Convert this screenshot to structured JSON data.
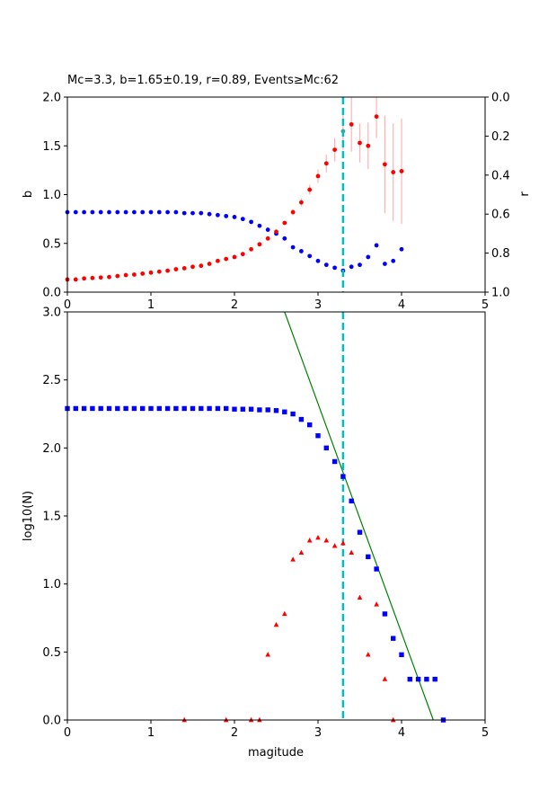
{
  "chart_data": [
    {
      "id": "top",
      "type": "scatter",
      "title": "Mc=3.3, b=1.65±0.19, r=0.89, Events≥Mc:62",
      "xlabel": "",
      "ylabel": "b",
      "ylabel_right": "r",
      "xlim": [
        0,
        5
      ],
      "ylim": [
        0,
        2.0
      ],
      "ylim_right": [
        1.0,
        0.0
      ],
      "xticks": [
        "0",
        "1",
        "2",
        "3",
        "4",
        "5"
      ],
      "yticks": [
        "0.0",
        "0.5",
        "1.0",
        "1.5",
        "2.0"
      ],
      "yticks_right": [
        "0.0",
        "0.2",
        "0.4",
        "0.6",
        "0.8",
        "1.0"
      ],
      "grid": false,
      "mc_line": 3.3,
      "colors": {
        "b": "#ff0000",
        "r": "#0000ff",
        "errorbar": "#ffb3b3",
        "mc": "#00bfbf",
        "highlight": "#808080"
      },
      "series": [
        {
          "axis": "left",
          "x": [
            0.0,
            0.1,
            0.2,
            0.3,
            0.4,
            0.5,
            0.6,
            0.7,
            0.8,
            0.9,
            1.0,
            1.1,
            1.2,
            1.3,
            1.4,
            1.5,
            1.6,
            1.7,
            1.8,
            1.9,
            2.0,
            2.1,
            2.2,
            2.3,
            2.4,
            2.5,
            2.6,
            2.7,
            2.8,
            2.9,
            3.0,
            3.1,
            3.2,
            3.3,
            3.4,
            3.5,
            3.6,
            3.7,
            3.8,
            3.9,
            4.0
          ],
          "values": [
            0.13,
            0.13,
            0.14,
            0.145,
            0.15,
            0.155,
            0.165,
            0.175,
            0.18,
            0.19,
            0.2,
            0.21,
            0.22,
            0.235,
            0.245,
            0.26,
            0.27,
            0.29,
            0.32,
            0.34,
            0.36,
            0.39,
            0.44,
            0.49,
            0.55,
            0.62,
            0.71,
            0.82,
            0.92,
            1.05,
            1.19,
            1.32,
            1.46,
            1.65,
            1.72,
            1.53,
            1.5,
            1.8,
            1.31,
            1.23,
            1.24
          ],
          "error": [
            0,
            0,
            0,
            0,
            0,
            0,
            0,
            0,
            0,
            0,
            0,
            0,
            0,
            0,
            0,
            0,
            0,
            0,
            0,
            0,
            0,
            0,
            0,
            0,
            0,
            0,
            0.02,
            0.03,
            0.04,
            0.05,
            0.07,
            0.09,
            0.12,
            0.19,
            0.28,
            0.2,
            0.24,
            0.22,
            0.5,
            0.5,
            0.54
          ]
        },
        {
          "axis": "right",
          "x": [
            0.0,
            0.1,
            0.2,
            0.3,
            0.4,
            0.5,
            0.6,
            0.7,
            0.8,
            0.9,
            1.0,
            1.1,
            1.2,
            1.3,
            1.4,
            1.5,
            1.6,
            1.7,
            1.8,
            1.9,
            2.0,
            2.1,
            2.2,
            2.3,
            2.4,
            2.5,
            2.6,
            2.7,
            2.8,
            2.9,
            3.0,
            3.1,
            3.2,
            3.3,
            3.4,
            3.5,
            3.6,
            3.7,
            3.8,
            3.9,
            4.0
          ],
          "values": [
            0.59,
            0.59,
            0.59,
            0.59,
            0.59,
            0.59,
            0.59,
            0.59,
            0.59,
            0.59,
            0.59,
            0.59,
            0.59,
            0.59,
            0.595,
            0.595,
            0.595,
            0.6,
            0.605,
            0.61,
            0.615,
            0.625,
            0.64,
            0.66,
            0.68,
            0.7,
            0.725,
            0.77,
            0.79,
            0.815,
            0.84,
            0.86,
            0.875,
            0.89,
            0.87,
            0.86,
            0.82,
            0.76,
            0.855,
            0.84,
            0.78
          ]
        }
      ]
    },
    {
      "id": "bottom",
      "type": "scatter",
      "title": "",
      "xlabel": "magitude",
      "ylabel": "log10(N)",
      "xlim": [
        0,
        5
      ],
      "ylim": [
        0,
        3.0
      ],
      "xticks": [
        "0",
        "1",
        "2",
        "3",
        "4",
        "5"
      ],
      "yticks": [
        "0.0",
        "0.5",
        "1.0",
        "1.5",
        "2.0",
        "2.5",
        "3.0"
      ],
      "grid": false,
      "mc_line": 3.3,
      "fit_line": {
        "x": [
          2.6,
          4.38
        ],
        "y": [
          3.0,
          0.0
        ]
      },
      "colors": {
        "cumulative": "#0000ff",
        "noncumulative": "#ff0000",
        "fit": "#008000",
        "mc": "#00bfbf"
      },
      "series": [
        {
          "marker": "square",
          "x": [
            0.0,
            0.1,
            0.2,
            0.3,
            0.4,
            0.5,
            0.6,
            0.7,
            0.8,
            0.9,
            1.0,
            1.1,
            1.2,
            1.3,
            1.4,
            1.5,
            1.6,
            1.7,
            1.8,
            1.9,
            2.0,
            2.1,
            2.2,
            2.3,
            2.4,
            2.5,
            2.6,
            2.7,
            2.8,
            2.9,
            3.0,
            3.1,
            3.2,
            3.3,
            3.4,
            3.5,
            3.6,
            3.7,
            3.8,
            3.9,
            4.0,
            4.1,
            4.2,
            4.3,
            4.4,
            4.5
          ],
          "values": [
            2.29,
            2.29,
            2.29,
            2.29,
            2.29,
            2.29,
            2.29,
            2.29,
            2.29,
            2.29,
            2.29,
            2.29,
            2.29,
            2.29,
            2.29,
            2.29,
            2.29,
            2.29,
            2.29,
            2.29,
            2.285,
            2.285,
            2.285,
            2.28,
            2.28,
            2.275,
            2.265,
            2.25,
            2.21,
            2.17,
            2.09,
            2.0,
            1.9,
            1.79,
            1.61,
            1.38,
            1.2,
            1.11,
            0.78,
            0.6,
            0.48,
            0.3,
            0.3,
            0.3,
            0.3,
            0.0
          ]
        },
        {
          "marker": "triangle",
          "x": [
            1.4,
            1.9,
            2.2,
            2.3,
            2.4,
            2.5,
            2.6,
            2.7,
            2.8,
            2.9,
            3.0,
            3.1,
            3.2,
            3.3,
            3.4,
            3.5,
            3.6,
            3.7,
            3.8,
            3.9
          ],
          "values": [
            0.0,
            0.0,
            0.0,
            0.0,
            0.48,
            0.7,
            0.78,
            1.18,
            1.23,
            1.32,
            1.34,
            1.32,
            1.28,
            1.3,
            1.23,
            0.9,
            0.48,
            0.85,
            0.3,
            0.0
          ]
        }
      ]
    }
  ]
}
